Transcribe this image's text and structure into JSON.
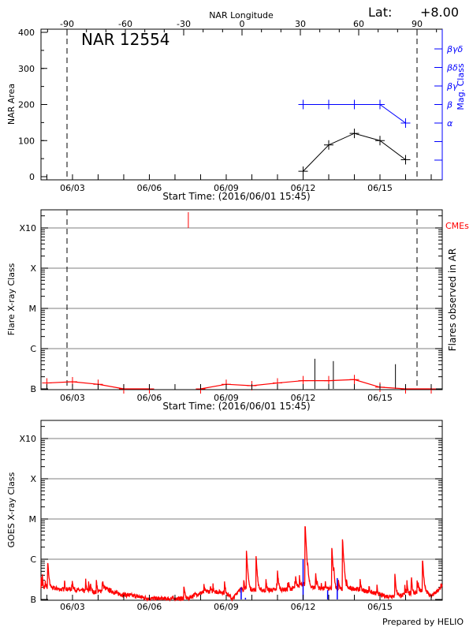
{
  "header": {
    "lat_label": "Lat:",
    "lat_value": "+8.00"
  },
  "footer": {
    "prepared_by": "Prepared by HELIO"
  },
  "colors": {
    "area": "#000000",
    "mag_class": "#0000ff",
    "flares": "#ff0000",
    "flare_bars": "#000000",
    "cme": "#ff0000",
    "goes": "#ff0000",
    "goes_flares": "#0000ff",
    "grid": "#999999"
  },
  "chart_data": [
    {
      "type": "line",
      "title": "NAR 12554",
      "ylabel": "NAR Area",
      "xlabel": "Start Time: (2016/06/01 15:45)",
      "xlim": [
        "2016-06-01T18:30",
        "2016-06-17T10:20"
      ],
      "xticks": [
        {
          "date": "2016-06-03T00:00",
          "label": "06/03"
        },
        {
          "date": "2016-06-06T00:00",
          "label": "06/06"
        },
        {
          "date": "2016-06-09T00:00",
          "label": "06/09"
        },
        {
          "date": "2016-06-12T00:00",
          "label": "06/12"
        },
        {
          "date": "2016-06-15T00:00",
          "label": "06/15"
        }
      ],
      "ylim": [
        -17,
        411
      ],
      "yticks": [
        "0",
        "100",
        "200",
        "300",
        "400"
      ],
      "top_axis": {
        "label": "NAR Longitude",
        "ticks": [
          "-90",
          "-60",
          "-30",
          "0",
          "30",
          "60",
          "90"
        ],
        "limb_longitudes": [
          -90,
          90
        ]
      },
      "right_axis": {
        "label": "Mag. Class",
        "ticks": [
          "α",
          "β",
          "βγ",
          "βδ",
          "βγδ"
        ]
      },
      "series": [
        {
          "name": "NAR Area",
          "points": [
            [
              "2016-06-12T00:00",
              15
            ],
            [
              "2016-06-13T00:00",
              88
            ],
            [
              "2016-06-14T00:00",
              120
            ],
            [
              "2016-06-15T00:00",
              100
            ],
            [
              "2016-06-16T00:00",
              47
            ]
          ]
        },
        {
          "name": "Mag. Class",
          "points": [
            [
              "2016-06-12T00:00",
              "β"
            ],
            [
              "2016-06-13T00:00",
              "β"
            ],
            [
              "2016-06-14T00:00",
              "β"
            ],
            [
              "2016-06-15T00:00",
              "β"
            ],
            [
              "2016-06-16T00:00",
              "α"
            ]
          ]
        }
      ]
    },
    {
      "type": "line",
      "ylabel": "Flare X-ray Class",
      "right_label": "Flares observed in AR",
      "cme_label": "CMEs",
      "xlabel": "Start Time: (2016/06/01 15:45)",
      "yscale": "log",
      "yticks": [
        "B",
        "C",
        "M",
        "X",
        "X10"
      ],
      "grid": true,
      "daily_flare_level": [
        [
          "2016-06-02T00:00",
          "B1.4"
        ],
        [
          "2016-06-03T00:00",
          "B1.5"
        ],
        [
          "2016-06-04T00:00",
          "B1.3"
        ],
        [
          "2016-06-05T00:00",
          "B1.0"
        ],
        [
          "2016-06-06T00:00",
          "B1.0"
        ],
        [
          "2016-06-08T00:00",
          "B1.0"
        ],
        [
          "2016-06-09T00:00",
          "B1.3"
        ],
        [
          "2016-06-10T00:00",
          "B1.2"
        ],
        [
          "2016-06-11T00:00",
          "B1.4"
        ],
        [
          "2016-06-12T00:00",
          "B1.6"
        ],
        [
          "2016-06-13T00:00",
          "B1.6"
        ],
        [
          "2016-06-14T00:00",
          "B1.7"
        ],
        [
          "2016-06-15T00:00",
          "B1.1"
        ],
        [
          "2016-06-16T00:00",
          "B1.0"
        ],
        [
          "2016-06-17T00:00",
          "B1.0"
        ]
      ],
      "ar_flares": [
        [
          "2016-06-12T11:00",
          "B5.6"
        ],
        [
          "2016-06-13T04:20",
          "B4.9"
        ],
        [
          "2016-06-15T14:30",
          "B4.1"
        ]
      ],
      "cmes": [
        "2016-06-07T12:30"
      ]
    },
    {
      "type": "line",
      "ylabel": "GOES X-ray Class",
      "yscale": "log",
      "yticks": [
        "B",
        "C",
        "M",
        "X",
        "X10"
      ],
      "grid": true,
      "baseline": [
        [
          "2016-06-01T18:30",
          "B1.8"
        ],
        [
          "2016-06-02T00:00",
          "B2.0"
        ],
        [
          "2016-06-02T12:00",
          "B1.8"
        ],
        [
          "2016-06-03T00:00",
          "B1.8"
        ],
        [
          "2016-06-03T12:00",
          "B1.6"
        ],
        [
          "2016-06-04T00:00",
          "B1.5"
        ],
        [
          "2016-06-04T06:00",
          "B1.9"
        ],
        [
          "2016-06-04T18:00",
          "B1.4"
        ],
        [
          "2016-06-05T12:00",
          "B1.2"
        ],
        [
          "2016-06-06T00:00",
          "B1.05"
        ],
        [
          "2016-06-07T12:00",
          "B1.05"
        ],
        [
          "2016-06-07T18:00",
          "B1.3"
        ],
        [
          "2016-06-08T06:00",
          "B1.6"
        ],
        [
          "2016-06-09T00:00",
          "B1.5"
        ],
        [
          "2016-06-09T06:00",
          "B1.0"
        ],
        [
          "2016-06-09T12:00",
          "B1.8"
        ],
        [
          "2016-06-10T12:00",
          "B1.7"
        ],
        [
          "2016-06-11T12:00",
          "B1.8"
        ],
        [
          "2016-06-12T00:00",
          "B2.4"
        ],
        [
          "2016-06-12T12:00",
          "B1.9"
        ],
        [
          "2016-06-13T12:00",
          "B1.8"
        ],
        [
          "2016-06-14T00:00",
          "B1.9"
        ],
        [
          "2016-06-14T12:00",
          "B1.6"
        ],
        [
          "2016-06-15T06:00",
          "B1.2"
        ],
        [
          "2016-06-16T00:00",
          "B1.3"
        ],
        [
          "2016-06-16T18:00",
          "B1.7"
        ],
        [
          "2016-06-17T00:00",
          "B1.2"
        ],
        [
          "2016-06-17T10:20",
          "B2.0"
        ]
      ],
      "peaks": [
        [
          "2016-06-02T01:00",
          "B7.6"
        ],
        [
          "2016-06-07T08:30",
          "B2.0"
        ],
        [
          "2016-06-09T19:00",
          "C1.6"
        ],
        [
          "2016-06-10T04:00",
          "C1.2"
        ],
        [
          "2016-06-11T00:00",
          "B5.1"
        ],
        [
          "2016-06-12T02:00",
          "C6.6"
        ],
        [
          "2016-06-13T03:00",
          "C1.9"
        ],
        [
          "2016-06-13T13:00",
          "C3.1"
        ],
        [
          "2016-06-15T14:00",
          "B4.2"
        ],
        [
          "2016-06-16T16:00",
          "B9.1"
        ]
      ],
      "flare_markers": [
        [
          "2016-06-09T14:00",
          "B2.0"
        ],
        [
          "2016-06-09T18:00",
          "B1.1"
        ],
        [
          "2016-06-12T00:00",
          "C1.0"
        ],
        [
          "2016-06-12T23:00",
          "B1.7"
        ],
        [
          "2016-06-13T08:00",
          "B3.4"
        ]
      ]
    }
  ]
}
